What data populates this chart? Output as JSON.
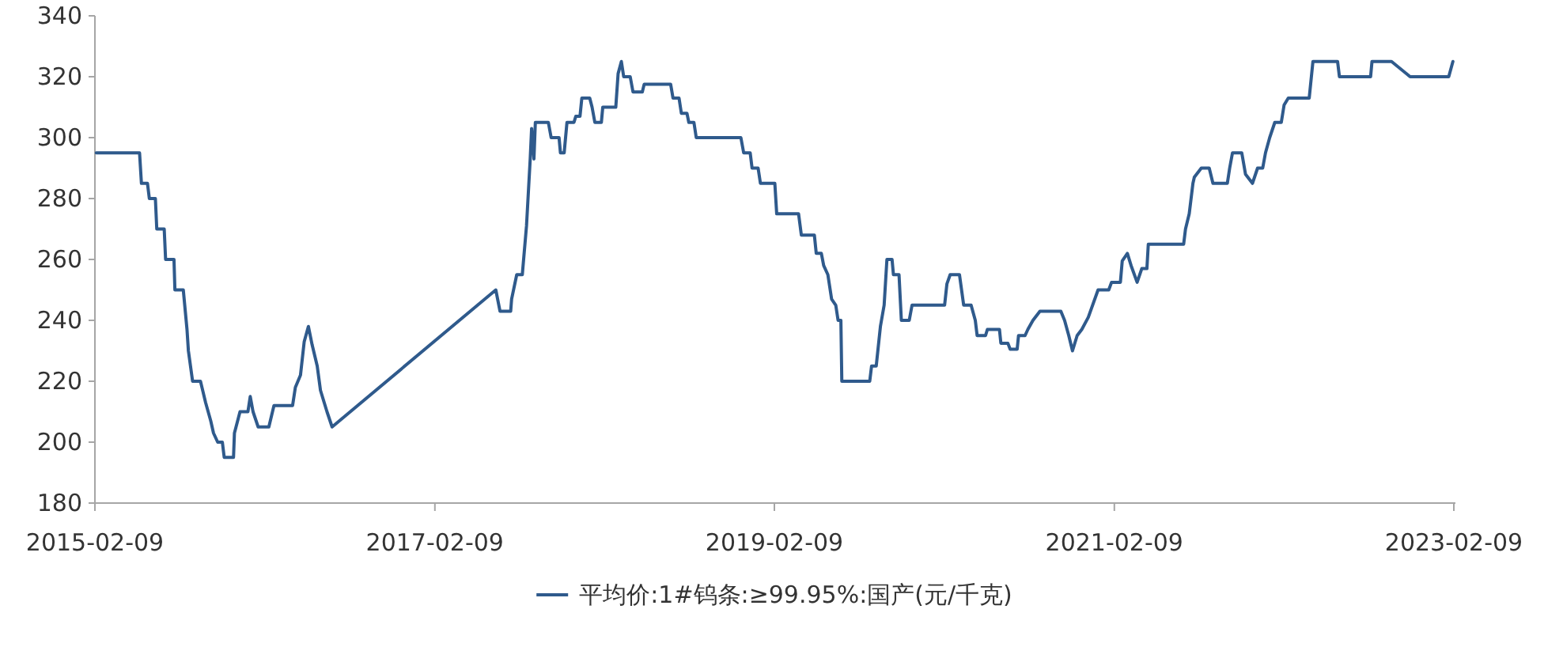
{
  "chart_data": {
    "type": "line",
    "x": [
      "2015-02-12",
      "2015-05-16",
      "2015-05-20",
      "2015-06-02",
      "2015-06-06",
      "2015-06-19",
      "2015-06-22",
      "2015-07-08",
      "2015-07-11",
      "2015-07-29",
      "2015-07-31",
      "2015-08-18",
      "2015-08-26",
      "2015-08-29",
      "2015-09-07",
      "2015-09-24",
      "2015-10-05",
      "2015-10-16",
      "2015-10-22",
      "2015-10-31",
      "2015-11-10",
      "2015-11-14",
      "2015-12-04",
      "2015-12-06",
      "2015-12-18",
      "2016-01-04",
      "2016-01-09",
      "2016-01-15",
      "2016-01-26",
      "2016-02-18",
      "2016-02-29",
      "2016-04-09",
      "2016-04-15",
      "2016-04-26",
      "2016-05-04",
      "2016-05-13",
      "2016-05-21",
      "2016-06-01",
      "2016-06-08",
      "2016-06-22",
      "2016-07-03",
      "2017-06-20",
      "2017-06-29",
      "2017-07-22",
      "2017-07-24",
      "2017-08-04",
      "2017-08-16",
      "2017-08-25",
      "2017-09-02",
      "2017-09-05",
      "2017-09-10",
      "2017-09-13",
      "2017-10-11",
      "2017-10-17",
      "2017-11-03",
      "2017-11-06",
      "2017-11-14",
      "2017-11-20",
      "2017-12-05",
      "2017-12-09",
      "2017-12-18",
      "2017-12-22",
      "2018-01-08",
      "2018-01-13",
      "2018-01-19",
      "2018-02-02",
      "2018-02-05",
      "2018-03-05",
      "2018-03-10",
      "2018-03-17",
      "2018-03-22",
      "2018-04-05",
      "2018-04-11",
      "2018-05-01",
      "2018-05-05",
      "2018-07-01",
      "2018-07-06",
      "2018-07-19",
      "2018-07-24",
      "2018-08-05",
      "2018-08-09",
      "2018-08-20",
      "2018-08-25",
      "2018-11-29",
      "2018-12-05",
      "2018-12-19",
      "2018-12-23",
      "2019-01-05",
      "2019-01-10",
      "2019-02-10",
      "2019-02-14",
      "2019-04-02",
      "2019-04-08",
      "2019-05-06",
      "2019-05-10",
      "2019-05-21",
      "2019-05-26",
      "2019-06-04",
      "2019-06-12",
      "2019-06-21",
      "2019-06-26",
      "2019-07-02",
      "2019-07-04",
      "2019-09-02",
      "2019-09-06",
      "2019-09-16",
      "2019-09-25",
      "2019-10-03",
      "2019-10-09",
      "2019-10-20",
      "2019-10-23",
      "2019-11-04",
      "2019-11-09",
      "2019-11-26",
      "2019-12-02",
      "2020-02-10",
      "2020-02-15",
      "2020-02-22",
      "2020-03-13",
      "2020-03-22",
      "2020-04-07",
      "2020-04-16",
      "2020-04-20",
      "2020-05-08",
      "2020-05-12",
      "2020-06-07",
      "2020-06-10",
      "2020-06-25",
      "2020-06-30",
      "2020-07-15",
      "2020-07-18",
      "2020-08-01",
      "2020-08-07",
      "2020-08-18",
      "2020-09-02",
      "2020-10-17",
      "2020-10-25",
      "2020-11-03",
      "2020-11-11",
      "2020-11-21",
      "2020-12-01",
      "2020-12-15",
      "2021-01-05",
      "2021-01-28",
      "2021-02-03",
      "2021-02-22",
      "2021-02-26",
      "2021-03-09",
      "2021-03-17",
      "2021-03-30",
      "2021-04-09",
      "2021-04-20",
      "2021-04-23",
      "2021-07-08",
      "2021-07-12",
      "2021-07-20",
      "2021-07-28",
      "2021-07-31",
      "2021-08-15",
      "2021-09-01",
      "2021-09-09",
      "2021-10-10",
      "2021-10-15",
      "2021-10-21",
      "2021-11-10",
      "2021-11-18",
      "2021-12-03",
      "2021-12-14",
      "2021-12-25",
      "2021-12-31",
      "2022-01-09",
      "2022-01-20",
      "2022-02-03",
      "2022-02-09",
      "2022-02-18",
      "2022-04-04",
      "2022-04-12",
      "2022-06-04",
      "2022-06-08",
      "2022-08-14",
      "2022-08-17",
      "2022-09-28",
      "2022-11-07",
      "2023-01-29",
      "2023-02-07"
    ],
    "series": [
      {
        "name": "平均价:1#钨条:≥99.95%:国产(元/千克)",
        "color": "#2f5a8c",
        "values": [
          295,
          295,
          285,
          285,
          280,
          280,
          270,
          270,
          260,
          260,
          250,
          250,
          237,
          230,
          220,
          220,
          213,
          207,
          203,
          200,
          200,
          195,
          195,
          203,
          210,
          210,
          215,
          210,
          205,
          205,
          212,
          212,
          218,
          222,
          233,
          238,
          232,
          225,
          217,
          210,
          205,
          250,
          243,
          243,
          247,
          255,
          255,
          271,
          293,
          303,
          293,
          305,
          305,
          300,
          300,
          295,
          295,
          305,
          305,
          307,
          307,
          313,
          313,
          310,
          305,
          305,
          310,
          310,
          321,
          325,
          320,
          320,
          315,
          315,
          317.5,
          317.5,
          313,
          313,
          308,
          308,
          305,
          305,
          300,
          300,
          295,
          295,
          290,
          290,
          285,
          285,
          275,
          275,
          268,
          268,
          262,
          262,
          258,
          255,
          247,
          245,
          240,
          240,
          220,
          220,
          225,
          225,
          238,
          245,
          260,
          260,
          255,
          255,
          240,
          240,
          245,
          245,
          252,
          255,
          255,
          245,
          245,
          240,
          235,
          235,
          237,
          237,
          232.5,
          232.5,
          230.5,
          230.5,
          235,
          235,
          237,
          240,
          243,
          243,
          240,
          235,
          230,
          235,
          237,
          241,
          250,
          250,
          252.5,
          252.5,
          259.5,
          262,
          258,
          252.5,
          257,
          257,
          265,
          265,
          270,
          275,
          285,
          287,
          290,
          290,
          285,
          285,
          290,
          295,
          295,
          288,
          285,
          290,
          290,
          295,
          300,
          305,
          305,
          310.7,
          313,
          313,
          325,
          325,
          320,
          320,
          325,
          325,
          320,
          320,
          325
        ]
      }
    ],
    "xlim": [
      "2015-02-09",
      "2023-02-09"
    ],
    "xticks": [
      "2015-02-09",
      "2017-02-09",
      "2019-02-09",
      "2021-02-09",
      "2023-02-09"
    ],
    "ylim": [
      180,
      340
    ],
    "yticks": [
      180,
      200,
      220,
      240,
      260,
      280,
      300,
      320,
      340
    ],
    "legend": "bottom"
  }
}
